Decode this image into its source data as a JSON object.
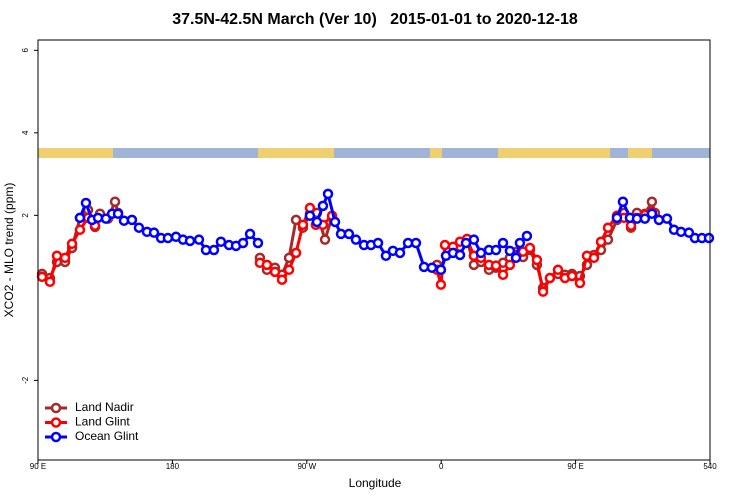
{
  "chart_data": {
    "type": "line",
    "title": "37.5N-42.5N March (Ver 10)   2015-01-01 to 2020-12-18",
    "x_label": "Longitude",
    "y_label": "XCO2 - MLO trend (ppm)",
    "xlim": [
      90,
      540
    ],
    "xticks": [
      {
        "value": 90,
        "label": "90 E"
      },
      180,
      {
        "value": 270,
        "label": "90 W"
      },
      {
        "value": 360,
        "label": "0"
      },
      {
        "value": 450,
        "label": "90 E"
      },
      540
    ],
    "ylim": [
      -3.93,
      6.25
    ],
    "yticks": [
      -2,
      2,
      4,
      6
    ],
    "legend": "bottom-left",
    "series": [
      {
        "name": "Land Nadir",
        "color": "#a52a2a",
        "x": [
          92.7,
          98.0,
          102.7,
          108.1,
          112.8,
          118.1,
          123.5,
          128.2,
          131.5,
          136.9,
          141.6,
          143.6,
          190,
          238.6,
          243.3,
          248.7,
          253.4,
          258.1,
          262.8,
          267.4,
          272.1,
          276.8,
          282.2,
          286.9,
          320,
          357.2,
          359.8,
          366,
          372.6,
          377.3,
          381.9,
          386.6,
          392.0,
          396.7,
          401.4,
          406.0,
          410.7,
          414.8,
          419.4,
          424.1,
          428.2,
          432.8,
          438.2,
          442.9,
          447.6,
          452.9,
          457.6,
          462.3,
          467.0,
          471.7,
          477.7,
          482.4,
          487.1,
          491.1,
          496.4,
          501.1,
          503.1
        ],
        "values": [
          0.58,
          0.48,
          0.87,
          0.87,
          1.21,
          1.94,
          2.13,
          1.72,
          2.04,
          1.92,
          2.33,
          2.06,
          null,
          0.97,
          0.68,
          0.73,
          0.56,
          0.97,
          1.89,
          1.7,
          2.04,
          2.06,
          1.41,
          1.96,
          null,
          0.8,
          0.68,
          null,
          1.24,
          1.41,
          0.8,
          0.87,
          0.68,
          0.73,
          0.85,
          0.97,
          1.12,
          0.99,
          1.16,
          0.8,
          0.24,
          0.48,
          0.58,
          0.56,
          0.58,
          0.53,
          0.8,
          1.04,
          1.16,
          1.41,
          1.89,
          2.06,
          1.7,
          2.06,
          2.04,
          2.33,
          2.06
        ]
      },
      {
        "name": "Land Glint",
        "color": "#ff0000",
        "x": [
          92.7,
          98.0,
          102.7,
          108.1,
          112.8,
          118.1,
          123.5,
          128.2,
          190,
          238.6,
          243.3,
          248.7,
          253.4,
          258.1,
          262.8,
          267.4,
          272.1,
          276.1,
          280.8,
          286.9,
          320,
          357.2,
          359.8,
          362.5,
          367.9,
          372.6,
          377.3,
          381.9,
          386.6,
          392.0,
          396.7,
          401.4,
          406.0,
          410.7,
          414.8,
          419.4,
          424.1,
          428.2,
          432.8,
          438.2,
          442.9,
          447.6,
          452.9,
          457.6,
          462.3,
          467.0,
          471.7,
          477.7,
          482.4,
          487.1,
          491.1,
          496.4,
          501.1
        ],
        "values": [
          0.51,
          0.39,
          1.02,
          0.97,
          1.31,
          1.65,
          1.94,
          1.75,
          null,
          0.85,
          0.8,
          0.63,
          0.44,
          0.68,
          1.09,
          1.77,
          2.18,
          1.77,
          1.77,
          1.99,
          null,
          0.68,
          0.32,
          1.28,
          1.24,
          1.36,
          1.43,
          1.02,
          0.97,
          0.8,
          0.78,
          0.56,
          0.8,
          1.04,
          1.12,
          1.21,
          0.92,
          0.15,
          0.48,
          0.68,
          0.48,
          0.53,
          0.36,
          1.02,
          0.97,
          1.36,
          1.7,
          1.99,
          1.94,
          1.75,
          1.94,
          2.01,
          2.08
        ]
      },
      {
        "name": "Ocean Glint",
        "color": "#0000ff",
        "x": [
          118.1,
          122.1,
          126.2,
          130.2,
          135.5,
          139.6,
          143.6,
          147.6,
          152.9,
          157.6,
          163.0,
          167.7,
          172.4,
          177.0,
          182.4,
          187.1,
          191.8,
          197.8,
          202.5,
          207.8,
          212.5,
          217.9,
          222.6,
          227.3,
          232.0,
          237.3,
          250,
          272.1,
          276.8,
          280.8,
          284.2,
          288.9,
          292.9,
          298.2,
          302.9,
          308.3,
          313.0,
          317.7,
          323.0,
          327.7,
          332.4,
          337.8,
          343.1,
          348.5,
          353.8,
          359.8,
          363.2,
          367.9,
          372.6,
          376.6,
          381.9,
          386.6,
          392.0,
          396.7,
          401.4,
          406.0,
          410.1,
          412.7,
          417.4,
          460,
          477.7,
          481.7,
          486.4,
          491.1,
          496.4,
          501.1,
          505.8,
          511.2,
          515.9,
          520.6,
          525.9,
          529.9,
          534.6,
          539.3
        ],
        "values": [
          1.94,
          2.3,
          1.89,
          1.94,
          1.92,
          2.04,
          2.04,
          1.87,
          1.89,
          1.7,
          1.6,
          1.58,
          1.45,
          1.45,
          1.48,
          1.41,
          1.38,
          1.41,
          1.16,
          1.16,
          1.36,
          1.28,
          1.26,
          1.33,
          1.55,
          1.33,
          null,
          1.99,
          1.84,
          2.23,
          2.52,
          1.84,
          1.55,
          1.55,
          1.41,
          1.28,
          1.28,
          1.33,
          1.02,
          1.14,
          1.09,
          1.33,
          1.33,
          0.75,
          0.73,
          0.68,
          1.02,
          1.09,
          1.04,
          1.33,
          1.41,
          1.09,
          1.16,
          1.16,
          1.33,
          1.14,
          0.97,
          1.33,
          1.5,
          null,
          1.94,
          2.33,
          1.94,
          1.92,
          1.92,
          2.04,
          1.89,
          1.92,
          1.65,
          1.6,
          1.58,
          1.45,
          1.45,
          1.45
        ]
      }
    ]
  }
}
